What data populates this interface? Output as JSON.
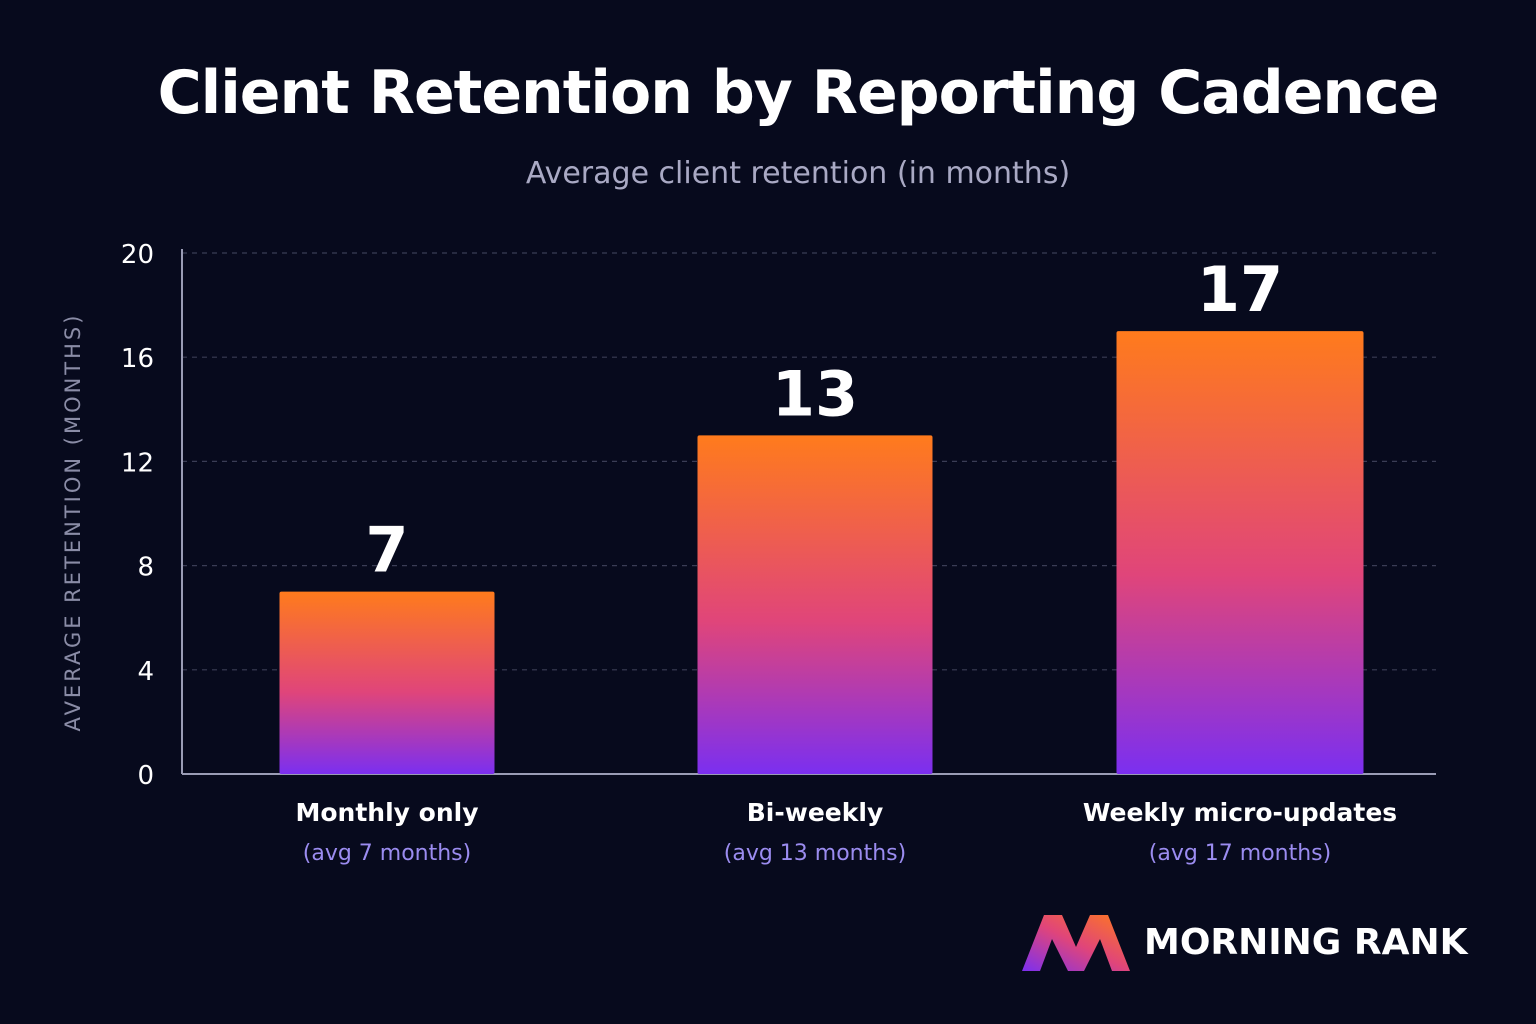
{
  "chart_data": {
    "type": "bar",
    "title": "Client Retention by Reporting Cadence",
    "subtitle": "Average client retention (in months)",
    "xlabel": "",
    "ylabel": "AVERAGE RETENTION (MONTHS)",
    "ylim": [
      0,
      20
    ],
    "yticks": [
      "0",
      "4",
      "8",
      "12",
      "16",
      "20"
    ],
    "ytick_values": [
      0,
      4,
      8,
      12,
      16,
      20
    ],
    "grid": true,
    "categories": [
      "Monthly only",
      "Bi-weekly",
      "Weekly micro-updates"
    ],
    "sublabels": [
      "(avg 7 months)",
      "(avg 13 months)",
      "(avg 17 months)"
    ],
    "values": [
      7,
      13,
      17
    ],
    "data_labels": [
      "7",
      "13",
      "17"
    ],
    "colors": {
      "bar_top": "#ff7b1c",
      "bar_mid": "#e0457a",
      "bar_bottom": "#7b2ff0",
      "background": "#070a1d",
      "grid": "#3a3d55",
      "sublabel": "#9b8cf0",
      "axis_label": "#8a8ca6"
    }
  },
  "logo": {
    "text": "MORNING RANK",
    "icon": "morning-rank-logo-icon"
  }
}
